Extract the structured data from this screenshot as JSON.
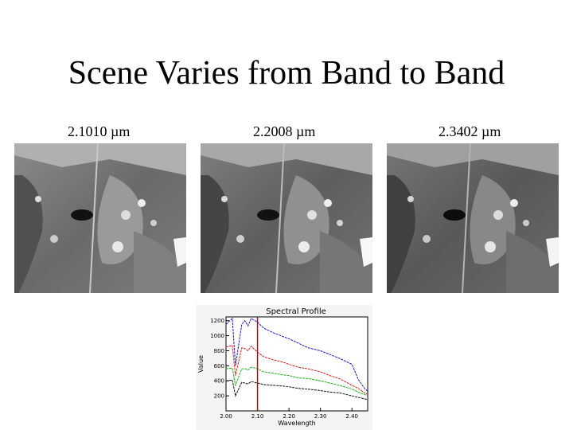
{
  "slide": {
    "title": "Scene Varies from Band to Band",
    "bands": [
      {
        "label": "2.1010 µm",
        "image": "grayscale satellite band image"
      },
      {
        "label": "2.2008 µm",
        "image": "grayscale satellite band image"
      },
      {
        "label": "2.3402 µm",
        "image": "grayscale satellite band image"
      }
    ]
  },
  "chart_data": {
    "type": "line",
    "title": "Spectral Profile",
    "xlabel": "Wavelength",
    "ylabel": "Value",
    "xlim": [
      2.0,
      2.45
    ],
    "ylim": [
      0,
      1250
    ],
    "x_ticks": [
      "2.00",
      "2.10",
      "2.20",
      "2.30",
      "2.40"
    ],
    "y_ticks": [
      "200",
      "400",
      "600",
      "800",
      "1000",
      "1200"
    ],
    "marker_x": 2.1,
    "series": [
      {
        "color": "#1a1acc",
        "x": [
          2.0,
          2.02,
          2.03,
          2.05,
          2.06,
          2.07,
          2.08,
          2.1,
          2.12,
          2.15,
          2.18,
          2.2,
          2.23,
          2.26,
          2.3,
          2.33,
          2.36,
          2.4,
          2.42,
          2.44,
          2.45
        ],
        "y": [
          1150,
          1230,
          600,
          1150,
          1200,
          1130,
          1230,
          1180,
          1100,
          1040,
          990,
          960,
          900,
          840,
          800,
          750,
          700,
          620,
          420,
          300,
          260
        ]
      },
      {
        "color": "#d42020",
        "x": [
          2.0,
          2.02,
          2.03,
          2.05,
          2.06,
          2.07,
          2.08,
          2.1,
          2.12,
          2.15,
          2.18,
          2.2,
          2.23,
          2.26,
          2.3,
          2.33,
          2.36,
          2.4,
          2.42,
          2.44,
          2.45
        ],
        "y": [
          850,
          870,
          470,
          840,
          830,
          800,
          860,
          780,
          720,
          680,
          650,
          620,
          580,
          560,
          520,
          470,
          430,
          340,
          300,
          240,
          220
        ]
      },
      {
        "color": "#22aa22",
        "x": [
          2.0,
          2.02,
          2.03,
          2.05,
          2.06,
          2.07,
          2.08,
          2.1,
          2.12,
          2.15,
          2.18,
          2.2,
          2.23,
          2.26,
          2.3,
          2.33,
          2.36,
          2.4,
          2.42,
          2.44,
          2.45
        ],
        "y": [
          560,
          570,
          340,
          560,
          560,
          545,
          580,
          560,
          520,
          500,
          480,
          470,
          440,
          430,
          400,
          370,
          340,
          290,
          250,
          220,
          200
        ]
      },
      {
        "color": "#111111",
        "x": [
          2.0,
          2.02,
          2.03,
          2.05,
          2.06,
          2.07,
          2.08,
          2.1,
          2.12,
          2.15,
          2.18,
          2.2,
          2.23,
          2.26,
          2.3,
          2.33,
          2.36,
          2.4,
          2.42,
          2.44,
          2.45
        ],
        "y": [
          400,
          410,
          200,
          380,
          370,
          360,
          390,
          370,
          350,
          340,
          330,
          320,
          300,
          290,
          270,
          250,
          240,
          200,
          180,
          160,
          150
        ]
      }
    ]
  }
}
